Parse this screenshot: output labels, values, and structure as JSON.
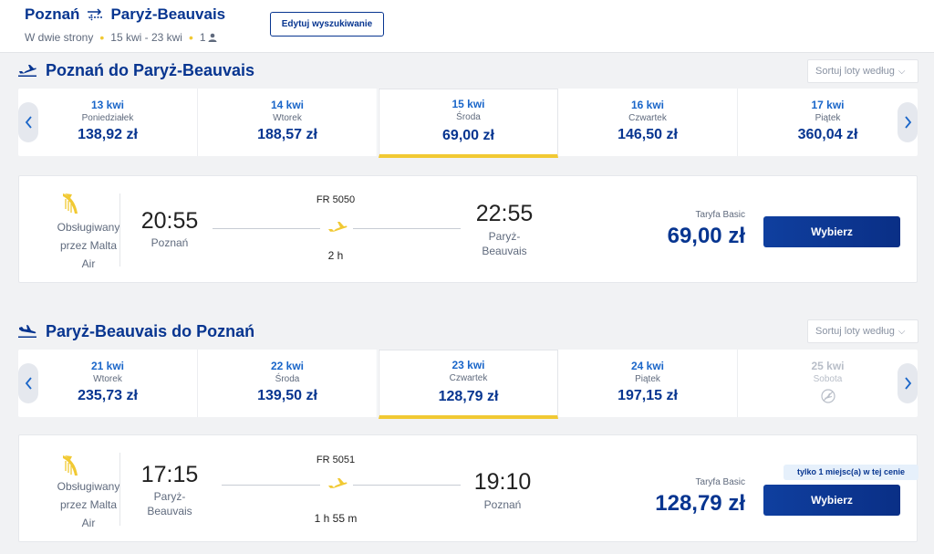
{
  "header": {
    "origin": "Poznań",
    "destination": "Paryż-Beauvais",
    "trip_type": "W dwie strony",
    "dates": "15 kwi - 23 kwi",
    "passengers": "1",
    "edit_label": "Edytuj wyszukiwanie"
  },
  "outbound": {
    "title": "Poznań do Paryż-Beauvais",
    "sort_label": "Sortuj loty według",
    "dates": [
      {
        "date": "13 kwi",
        "weekday": "Poniedziałek",
        "price": "138,92 zł"
      },
      {
        "date": "14 kwi",
        "weekday": "Wtorek",
        "price": "188,57 zł"
      },
      {
        "date": "15 kwi",
        "weekday": "Środa",
        "price": "69,00 zł"
      },
      {
        "date": "16 kwi",
        "weekday": "Czwartek",
        "price": "146,50 zł"
      },
      {
        "date": "17 kwi",
        "weekday": "Piątek",
        "price": "360,04 zł"
      }
    ],
    "flight": {
      "operator_line1": "Obsługiwany",
      "operator_line2": "przez Malta",
      "operator_line3": "Air",
      "dep_time": "20:55",
      "dep_city": "Poznań",
      "flight_no": "FR 5050",
      "duration": "2 h",
      "arr_time": "22:55",
      "arr_city_line1": "Paryż-",
      "arr_city_line2": "Beauvais",
      "fare_label": "Taryfa Basic",
      "price": "69,00 zł",
      "select_label": "Wybierz"
    }
  },
  "inbound": {
    "title": "Paryż-Beauvais do Poznań",
    "sort_label": "Sortuj loty według",
    "dates": [
      {
        "date": "21 kwi",
        "weekday": "Wtorek",
        "price": "235,73 zł"
      },
      {
        "date": "22 kwi",
        "weekday": "Środa",
        "price": "139,50 zł"
      },
      {
        "date": "23 kwi",
        "weekday": "Czwartek",
        "price": "128,79 zł"
      },
      {
        "date": "24 kwi",
        "weekday": "Piątek",
        "price": "197,15 zł"
      },
      {
        "date": "25 kwi",
        "weekday": "Sobota",
        "price": ""
      }
    ],
    "flight": {
      "operator_line1": "Obsługiwany",
      "operator_line2": "przez Malta",
      "operator_line3": "Air",
      "dep_time": "17:15",
      "dep_city_line1": "Paryż-",
      "dep_city_line2": "Beauvais",
      "flight_no": "FR 5051",
      "duration": "1 h 55 m",
      "arr_time": "19:10",
      "arr_city": "Poznań",
      "seats_badge": "tylko 1 miejsc(a) w tej cenie",
      "fare_label": "Taryfa Basic",
      "price": "128,79 zł",
      "select_label": "Wybierz"
    }
  },
  "colors": {
    "brand": "#073590",
    "accent": "#f1c933",
    "link": "#1a66c9"
  }
}
